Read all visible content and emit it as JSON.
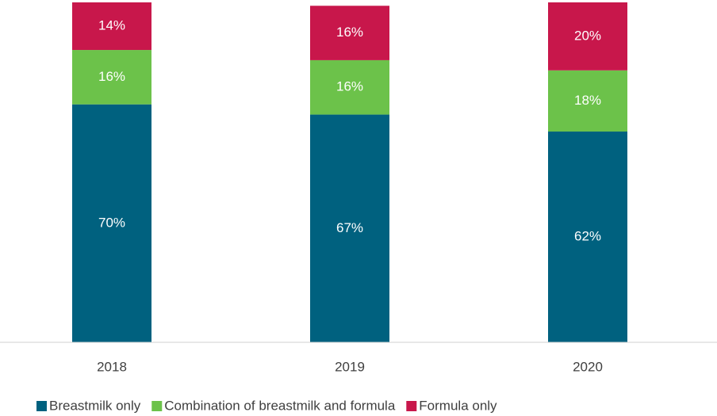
{
  "chart_data": {
    "type": "stacked_bar",
    "categories": [
      "2018",
      "2019",
      "2020"
    ],
    "series": [
      {
        "name": "Breastmilk only",
        "color": "#00617f",
        "values": [
          70,
          67,
          62
        ],
        "value_labels": [
          "70%",
          "67%",
          "62%"
        ]
      },
      {
        "name": "Combination of breastmilk and formula",
        "color": "#6cc24a",
        "values": [
          16,
          16,
          18
        ],
        "value_labels": [
          "16%",
          "16%",
          "18%"
        ]
      },
      {
        "name": "Formula only",
        "color": "#c8174b",
        "values": [
          14,
          16,
          20
        ],
        "value_labels": [
          "14%",
          "16%",
          "20%"
        ]
      }
    ],
    "ylim": [
      0,
      100
    ],
    "legend": "bottom"
  }
}
